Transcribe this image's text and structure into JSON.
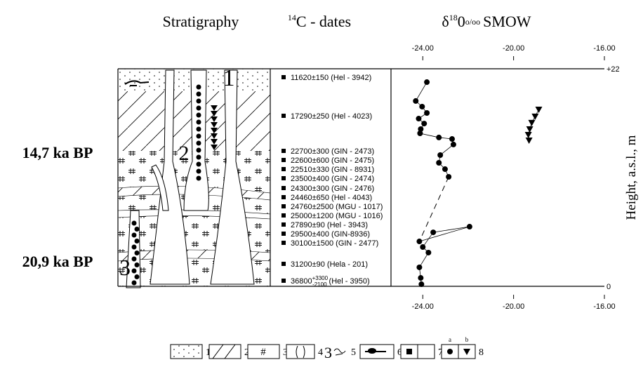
{
  "headers": {
    "stratigraphy": "Stratigraphy",
    "dates": {
      "sup": "14",
      "text": "C - dates"
    },
    "isotope": {
      "symbol": "δ",
      "sup": "18",
      "base": "0",
      "unit": "o/oo",
      "ref": "SMOW"
    }
  },
  "age_labels": [
    "14,7 ka BP",
    "20,9 ka BP"
  ],
  "strat_numbers": [
    "1",
    "2",
    "3"
  ],
  "dates": [
    "11620±150 (Hel - 3942)",
    "17290±250 (Hel - 4023)",
    "22700±300 (GIN - 2473)",
    "22600±600 (GIN - 2475)",
    "22510±330 (GIN - 8931)",
    "23500±400 (GIN - 2474)",
    "24300±300 (GIN - 2476)",
    "24460±650 (Hel - 4043)",
    "24760±2500 (MGU - 1017)",
    "25000±1200 (MGU - 1016)",
    "27890±90 (Hel - 3943)",
    "29500±400 (GIN-8936)",
    "30100±1500 (GIN - 2477)",
    "31200±90 (Hela - 201)"
  ],
  "last_date": {
    "value": "36800",
    "plus": "+3300",
    "minus": "-2100",
    "lab": "(Hel - 3950)"
  },
  "chart_data": {
    "type": "line",
    "ylabel": "Height, a.s.l., m",
    "xlim": [
      -25.4,
      -16
    ],
    "ylim": [
      0,
      22
    ],
    "xticks": [
      {
        "value": -24,
        "label": "-24.00"
      },
      {
        "value": -20,
        "label": "-20.00"
      },
      {
        "value": -16,
        "label": "-16.00"
      }
    ],
    "yticks": [
      {
        "value": 22,
        "label": "+22"
      },
      0
    ],
    "series": [
      {
        "color": "#000000",
        "marker": "circle",
        "x": [
          -23.82,
          -24.31,
          -24.03,
          -23.82,
          -24.18,
          -23.94,
          -24.09,
          -24.12,
          -23.29,
          -22.71,
          -22.65,
          -23.23,
          -23.29,
          -23.02,
          -22.86,
          null,
          -24.15,
          -21.94,
          -23.54,
          -24.0,
          -23.75,
          -24.15,
          -24.09,
          -24.06
        ],
        "values": [
          20.65,
          18.74,
          18.17,
          17.53,
          16.96,
          16.46,
          15.9,
          15.47,
          15.05,
          14.9,
          14.34,
          13.27,
          12.49,
          11.85,
          11.07,
          null,
          4.54,
          6.03,
          5.46,
          3.97,
          3.41,
          1.92,
          0.85,
          0.21
        ]
      },
      {
        "color": "#000000",
        "marker": "triangle",
        "x": [
          -18.89,
          -19.05,
          -19.2,
          -19.29,
          -19.35,
          -19.32
        ],
        "values": [
          17.88,
          17.18,
          16.54,
          15.9,
          15.33,
          14.76
        ]
      }
    ]
  },
  "legend": {
    "items": [
      "1",
      "2",
      "3",
      "4",
      "5",
      "6",
      "7",
      "8"
    ],
    "symbol_text": "3",
    "sub": [
      "a",
      "b"
    ]
  }
}
